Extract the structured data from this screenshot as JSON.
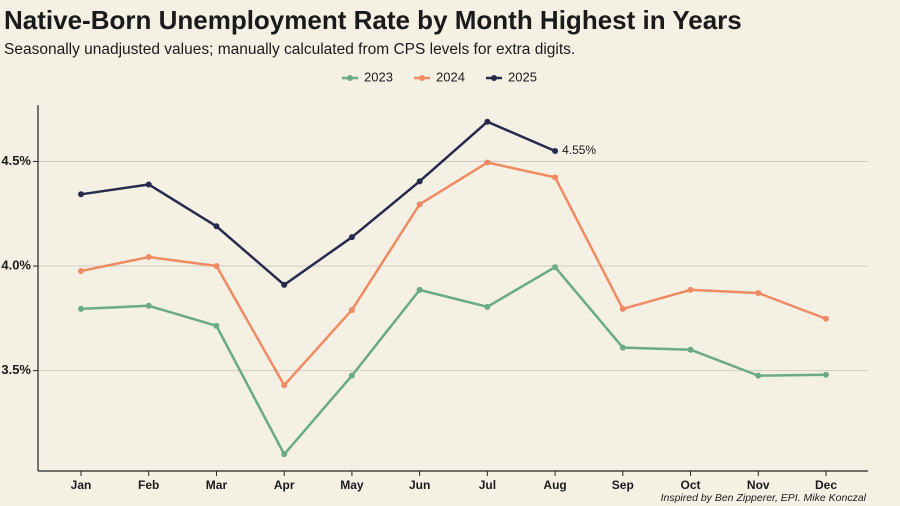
{
  "chart_data": {
    "type": "line",
    "title": "Native-Born Unemployment Rate by Month Highest in Years",
    "subtitle": "Seasonally unadjusted values; manually calculated from CPS levels for extra digits.",
    "credit": "Inspired by Ben Zipperer, EPI. Mike Konczal",
    "categories": [
      "Jan",
      "Feb",
      "Mar",
      "Apr",
      "May",
      "Jun",
      "Jul",
      "Aug",
      "Sep",
      "Oct",
      "Nov",
      "Dec"
    ],
    "series": [
      {
        "name": "2023",
        "color": "#6aaa84",
        "values": [
          3.795,
          3.81,
          3.714,
          3.1,
          3.476,
          3.886,
          3.805,
          3.995,
          3.61,
          3.6,
          3.476,
          3.48
        ]
      },
      {
        "name": "2024",
        "color": "#f08a62",
        "values": [
          3.976,
          4.043,
          4.0,
          3.43,
          3.79,
          4.295,
          4.495,
          4.424,
          3.795,
          3.886,
          3.871,
          3.748
        ]
      },
      {
        "name": "2025",
        "color": "#262b4d",
        "values": [
          4.343,
          4.39,
          4.19,
          3.91,
          4.138,
          4.405,
          4.69,
          4.55,
          null,
          null,
          null,
          null
        ],
        "value_labels": [
          null,
          null,
          null,
          null,
          null,
          null,
          null,
          "4.55%",
          null,
          null,
          null,
          null
        ]
      }
    ],
    "ylim": [
      3.02,
      4.77
    ],
    "yticks": [
      {
        "value": 3.5,
        "label": "3.5%"
      },
      {
        "value": 4.0,
        "label": "4.0%"
      },
      {
        "value": 4.5,
        "label": "4.5%"
      }
    ],
    "grid": true,
    "legend": "top"
  }
}
